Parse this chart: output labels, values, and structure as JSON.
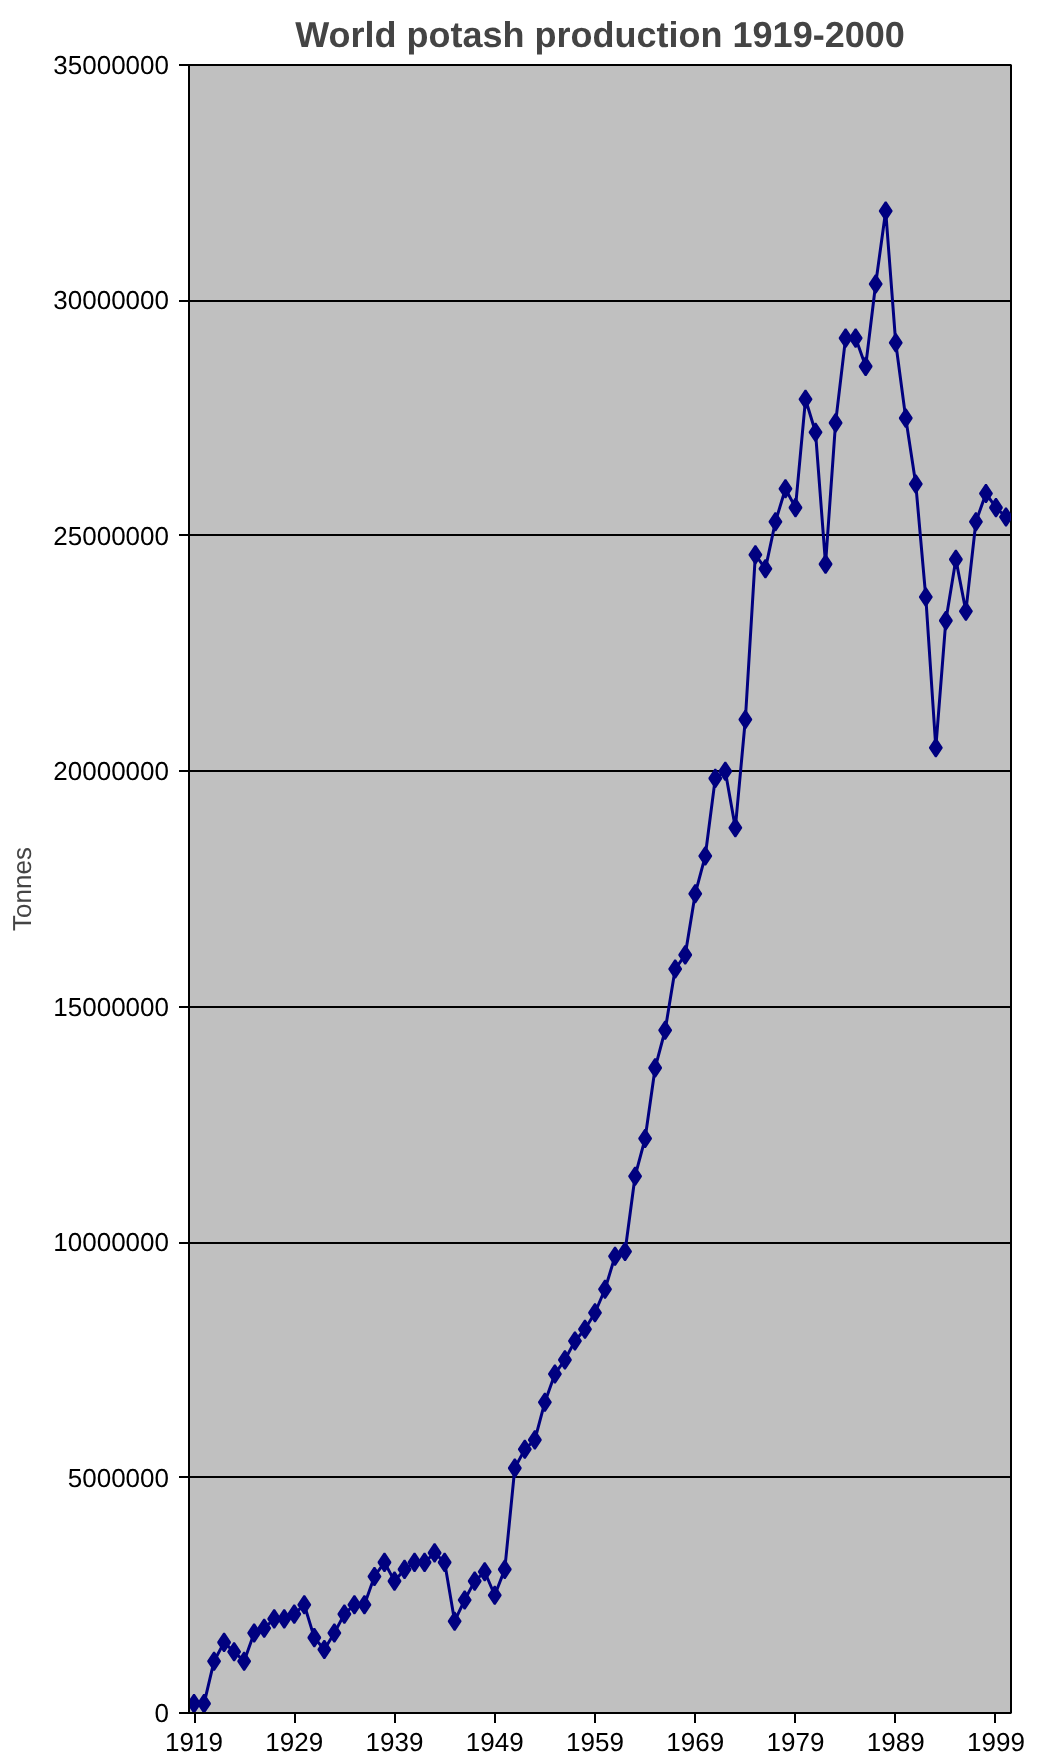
{
  "chart_data": {
    "type": "line",
    "title": "World potash production 1919-2000",
    "ylabel": "Tonnes",
    "x": [
      1919,
      1920,
      1921,
      1922,
      1923,
      1924,
      1925,
      1926,
      1927,
      1928,
      1929,
      1930,
      1931,
      1932,
      1933,
      1934,
      1935,
      1936,
      1937,
      1938,
      1939,
      1940,
      1941,
      1942,
      1943,
      1944,
      1945,
      1946,
      1947,
      1948,
      1949,
      1950,
      1951,
      1952,
      1953,
      1954,
      1955,
      1956,
      1957,
      1958,
      1959,
      1960,
      1961,
      1962,
      1963,
      1964,
      1965,
      1966,
      1967,
      1968,
      1969,
      1970,
      1971,
      1972,
      1973,
      1974,
      1975,
      1976,
      1977,
      1978,
      1979,
      1980,
      1981,
      1982,
      1983,
      1984,
      1985,
      1986,
      1987,
      1988,
      1989,
      1990,
      1991,
      1992,
      1993,
      1994,
      1995,
      1996,
      1997,
      1998,
      1999,
      2000
    ],
    "values": [
      200000,
      200000,
      1100000,
      1500000,
      1300000,
      1100000,
      1700000,
      1800000,
      2000000,
      2000000,
      2100000,
      2300000,
      1600000,
      1350000,
      1700000,
      2100000,
      2300000,
      2300000,
      2900000,
      3200000,
      2800000,
      3050000,
      3200000,
      3200000,
      3400000,
      3200000,
      1950000,
      2400000,
      2800000,
      3000000,
      2500000,
      3050000,
      5200000,
      5600000,
      5800000,
      6600000,
      7200000,
      7500000,
      7900000,
      8150000,
      8500000,
      9000000,
      9700000,
      9800000,
      11400000,
      12200000,
      13700000,
      14500000,
      15800000,
      16100000,
      17400000,
      18200000,
      19850000,
      20000000,
      18800000,
      21100000,
      24600000,
      24300000,
      25300000,
      26000000,
      25600000,
      27900000,
      27200000,
      24400000,
      27400000,
      29200000,
      29200000,
      28600000,
      30350000,
      31900000,
      29100000,
      27500000,
      26100000,
      23700000,
      20500000,
      23200000,
      24500000,
      23400000,
      25300000,
      25900000,
      25600000,
      25400000
    ],
    "color": "#000080",
    "marker": "diamond",
    "line_style": "solid",
    "grid": "y",
    "xlim": [
      1918.5,
      2000.5
    ],
    "xticks": [
      1919,
      1929,
      1939,
      1949,
      1959,
      1969,
      1979,
      1989,
      1999
    ],
    "ylim": [
      0,
      35000000
    ],
    "yticks": [
      0,
      5000000,
      10000000,
      15000000,
      20000000,
      25000000,
      30000000,
      35000000
    ]
  }
}
